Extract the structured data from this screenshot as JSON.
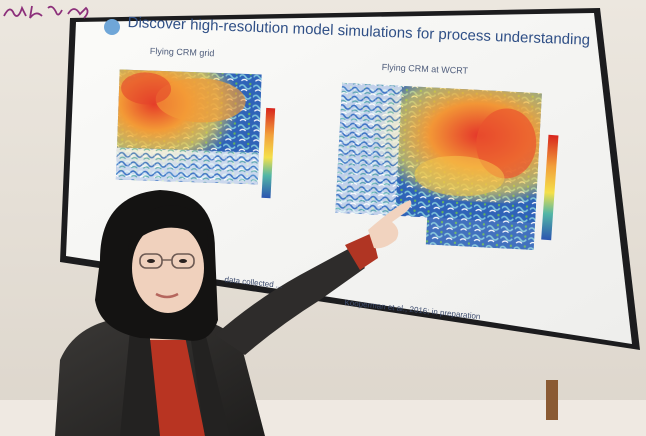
{
  "slide": {
    "title": "Discover high-resolution model simulations for process understanding",
    "left_panel_caption": "Flying CRM grid",
    "right_panel_caption": "Flying CRM at WCRT",
    "footnote_left": "data collected ...",
    "footnote_right": "Kooperman et al., 2016; in preparation"
  },
  "colors": {
    "slide_background": "#f7f7f5",
    "map_high": "#e7352b",
    "map_mid": "#f5d13a",
    "map_low": "#2a5fb5",
    "jacket": "#2b2a29",
    "sweater": "#b83422"
  },
  "signature_text": "Ba Xi Jia"
}
